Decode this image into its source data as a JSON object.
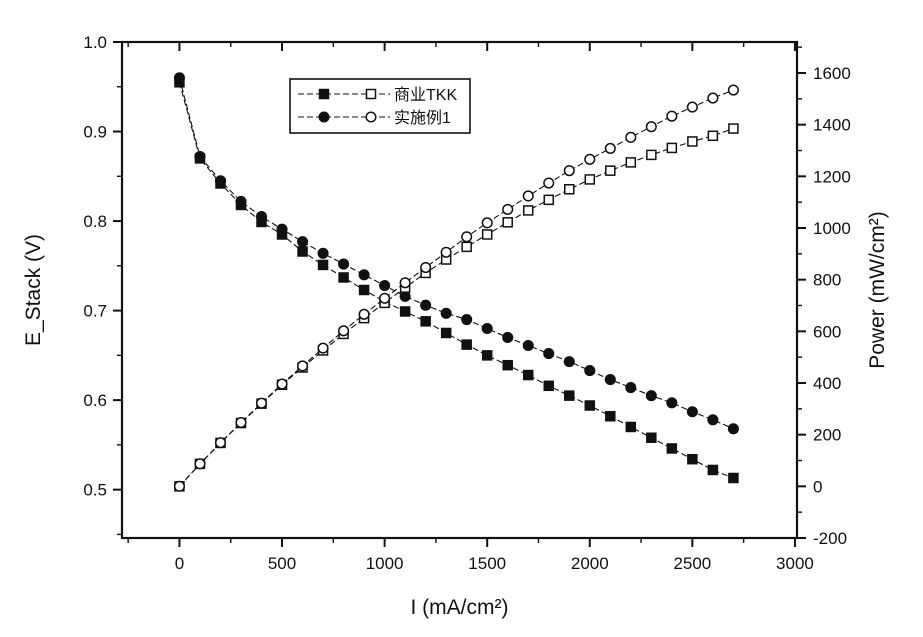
{
  "figure": {
    "description": "Fuel cell polarization and power density curves comparing commercial TKK catalyst and Example 1",
    "background": "#ffffff",
    "ink_color": "#111111"
  },
  "chart_data": {
    "type": "line",
    "title": "",
    "xlabel": "I (mA/cm²)",
    "ylabel_left": "E_Stack (V)",
    "ylabel_right": "Power (mW/cm²)",
    "xlim": [
      -280,
      3010
    ],
    "ylim_left": [
      0.446,
      1.0
    ],
    "ylim_right": [
      -200,
      1720
    ],
    "grid": false,
    "legend_position": "top-center-inside",
    "x_ticks": [
      {
        "value": 0,
        "label": "0"
      },
      {
        "value": 500,
        "label": "500"
      },
      {
        "value": 1000,
        "label": "1000"
      },
      {
        "value": 1500,
        "label": "1500"
      },
      {
        "value": 2000,
        "label": "2000"
      },
      {
        "value": 2500,
        "label": "2500"
      },
      {
        "value": 3000,
        "label": "3000"
      }
    ],
    "x_minor_ticks": [
      -250,
      250,
      750,
      1250,
      1750,
      2250,
      2750
    ],
    "y_left_ticks": [
      {
        "value": 0.5,
        "label": "0.5"
      },
      {
        "value": 0.6,
        "label": "0.6"
      },
      {
        "value": 0.7,
        "label": "0.7"
      },
      {
        "value": 0.8,
        "label": "0.8"
      },
      {
        "value": 0.9,
        "label": "0.9"
      },
      {
        "value": 1.0,
        "label": "1.0"
      }
    ],
    "y_left_minor_ticks": [
      0.45,
      0.55,
      0.65,
      0.75,
      0.85,
      0.95
    ],
    "y_right_ticks": [
      {
        "value": -200,
        "label": "-200"
      },
      {
        "value": 0,
        "label": "0"
      },
      {
        "value": 200,
        "label": "200"
      },
      {
        "value": 400,
        "label": "400"
      },
      {
        "value": 600,
        "label": "600"
      },
      {
        "value": 800,
        "label": "800"
      },
      {
        "value": 1000,
        "label": "1000"
      },
      {
        "value": 1200,
        "label": "1200"
      },
      {
        "value": 1400,
        "label": "1400"
      },
      {
        "value": 1600,
        "label": "1600"
      }
    ],
    "y_right_minor_ticks": [
      -100,
      100,
      300,
      500,
      700,
      900,
      1100,
      1300,
      1500,
      1700
    ],
    "legend": [
      {
        "label": "商业TKK",
        "filled_marker": "square",
        "open_marker": "square"
      },
      {
        "label": "实施例1",
        "filled_marker": "circle",
        "open_marker": "circle"
      }
    ],
    "x": [
      0,
      100,
      200,
      300,
      400,
      500,
      600,
      700,
      800,
      900,
      1000,
      1100,
      1200,
      1300,
      1400,
      1500,
      1600,
      1700,
      1800,
      1900,
      2000,
      2100,
      2200,
      2300,
      2400,
      2500,
      2600,
      2700
    ],
    "series": [
      {
        "id": "tkk-voltage",
        "name": "商业TKK E_Stack",
        "axis": "left",
        "marker": "square",
        "fill": "filled",
        "values": [
          0.955,
          0.87,
          0.842,
          0.818,
          0.799,
          0.785,
          0.766,
          0.751,
          0.737,
          0.723,
          0.71,
          0.699,
          0.688,
          0.675,
          0.662,
          0.65,
          0.639,
          0.628,
          0.616,
          0.605,
          0.594,
          0.582,
          0.57,
          0.558,
          0.546,
          0.534,
          0.522,
          0.513
        ]
      },
      {
        "id": "ex1-voltage",
        "name": "实施例1 E_Stack",
        "axis": "left",
        "marker": "circle",
        "fill": "filled",
        "values": [
          0.96,
          0.872,
          0.845,
          0.822,
          0.805,
          0.791,
          0.777,
          0.764,
          0.752,
          0.74,
          0.728,
          0.716,
          0.706,
          0.697,
          0.69,
          0.68,
          0.67,
          0.661,
          0.652,
          0.643,
          0.633,
          0.623,
          0.614,
          0.605,
          0.597,
          0.587,
          0.578,
          0.568
        ]
      },
      {
        "id": "tkk-power",
        "name": "商业TKK Power",
        "axis": "right",
        "marker": "square",
        "fill": "open",
        "values": [
          0,
          87,
          168,
          245,
          320,
          393,
          460,
          526,
          590,
          651,
          710,
          769,
          826,
          878,
          927,
          975,
          1022,
          1068,
          1109,
          1150,
          1188,
          1222,
          1254,
          1283,
          1310,
          1335,
          1357,
          1385
        ]
      },
      {
        "id": "ex1-power",
        "name": "实施例1 Power",
        "axis": "right",
        "marker": "circle",
        "fill": "open",
        "values": [
          0,
          87,
          169,
          247,
          322,
          396,
          466,
          535,
          602,
          666,
          728,
          788,
          847,
          906,
          966,
          1020,
          1072,
          1124,
          1174,
          1222,
          1266,
          1308,
          1351,
          1392,
          1433,
          1468,
          1503,
          1534
        ]
      }
    ]
  }
}
